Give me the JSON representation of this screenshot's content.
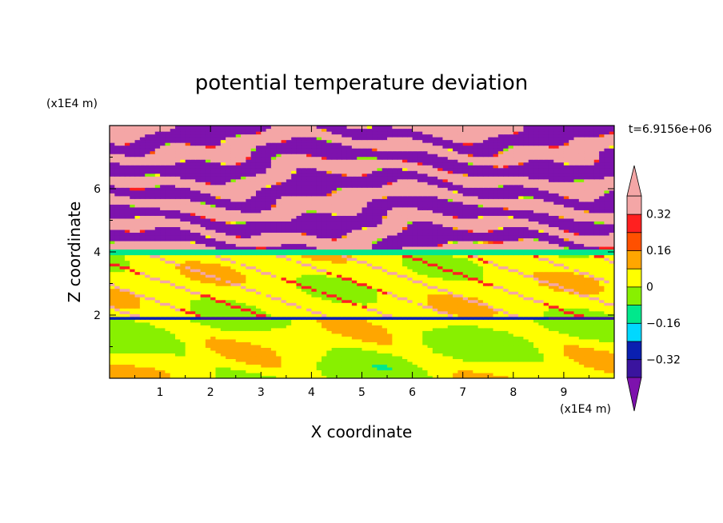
{
  "chart_data": {
    "type": "heatmap",
    "title": "potential temperature deviation",
    "xlabel": "X coordinate",
    "ylabel": "Z coordinate",
    "x_unit": "(x1E4 m)",
    "y_unit": "(x1E4 m)",
    "time_label": "t=6.9156e+06",
    "xlim": [
      0,
      10
    ],
    "ylim": [
      0,
      8
    ],
    "x_ticks": [
      "1",
      "2",
      "3",
      "4",
      "5",
      "6",
      "7",
      "8",
      "9"
    ],
    "y_ticks": [
      "2",
      "4",
      "6"
    ],
    "colorbar": {
      "levels": [
        -0.4,
        -0.32,
        -0.24,
        -0.16,
        -0.08,
        0,
        0.08,
        0.16,
        0.24,
        0.32,
        0.4
      ],
      "tick_labels": [
        "0.32",
        "0.16",
        "0",
        "−0.16",
        "−0.32"
      ],
      "tick_values": [
        0.32,
        0.16,
        0,
        -0.16,
        -0.32
      ],
      "colors": [
        "#7d12ad",
        "#3a149e",
        "#0a1fb0",
        "#00d8ff",
        "#00e88c",
        "#88f000",
        "#ffff00",
        "#ffa600",
        "#ff5000",
        "#ff2020",
        "#f4a6a6"
      ],
      "extend": "both"
    },
    "bands": [
      {
        "z0": 0.0,
        "z1": 1.9,
        "value": 0.0,
        "note": "mixed green / lime"
      },
      {
        "z0": 1.9,
        "z1": 2.0,
        "value": -0.3,
        "note": "thin blue line"
      },
      {
        "z0": 2.0,
        "z1": 3.9,
        "value": 0.04,
        "note": "green with lime patches"
      },
      {
        "z0": 3.9,
        "z1": 4.05,
        "value": -0.12,
        "note": "cyan transition"
      },
      {
        "z0": 4.05,
        "z1": 8.0,
        "value": 0.0,
        "note": "alternating pink (>0.4) and purple (<-0.4) layers"
      }
    ]
  }
}
